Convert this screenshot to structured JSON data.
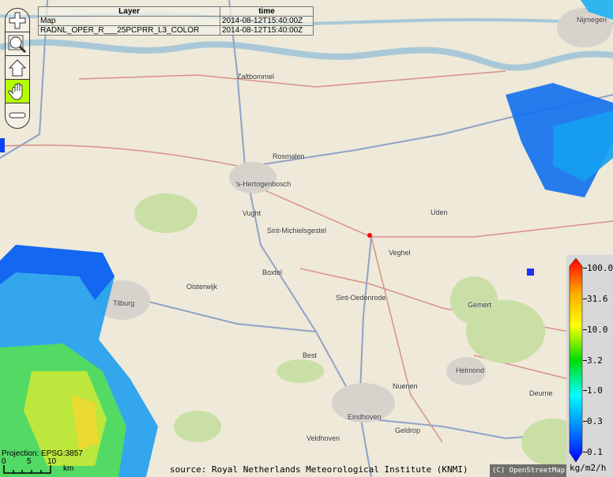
{
  "layer_table": {
    "headers": [
      "Layer",
      "time"
    ],
    "rows": [
      [
        "Map",
        "2014-08-12T15:40:00Z"
      ],
      [
        "RADNL_OPER_R___25PCPRR_L3_COLOR",
        "2014-08-12T15:40:00Z"
      ]
    ]
  },
  "toolbar": {
    "tools": [
      {
        "icon": "zoom-in-icon"
      },
      {
        "icon": "zoom-box-icon"
      },
      {
        "icon": "home-icon"
      },
      {
        "icon": "pan-hand-icon",
        "active": true
      },
      {
        "icon": "zoom-out-icon"
      }
    ],
    "active_color": "#b3ff00"
  },
  "legend": {
    "labels": [
      "100.0",
      "31.6",
      "10.0",
      "3.2",
      "1.0",
      "0.3",
      "0.1"
    ],
    "unit": "kg/m2/h",
    "colors": [
      "#ff0000",
      "#ffaa00",
      "#ffff00",
      "#00dd00",
      "#00ffff",
      "#0088ff",
      "#0000ff"
    ]
  },
  "map": {
    "cities": [
      "Zaltbommel",
      "Nijmegen",
      "'s-Hertogenbosch",
      "Rosmalen",
      "Vught",
      "Sint-Michielsgestel",
      "Boxtel",
      "Oisterwijk",
      "Tilburg",
      "Uden",
      "Veghel",
      "Sint-Oedenrode",
      "Best",
      "Eindhoven",
      "Helmond",
      "Nuenen",
      "Geldrop",
      "Veldhoven",
      "Gemert",
      "Deurne"
    ],
    "marker_color": "#ff0000"
  },
  "projection": "Projection: EPSG:3857",
  "scale": {
    "ticks": [
      "0",
      "5",
      "10"
    ],
    "unit": "km"
  },
  "attribution": "(C) OpenStreetMap",
  "source": "source: Royal Netherlands Meteorological Institute (KNMI)"
}
